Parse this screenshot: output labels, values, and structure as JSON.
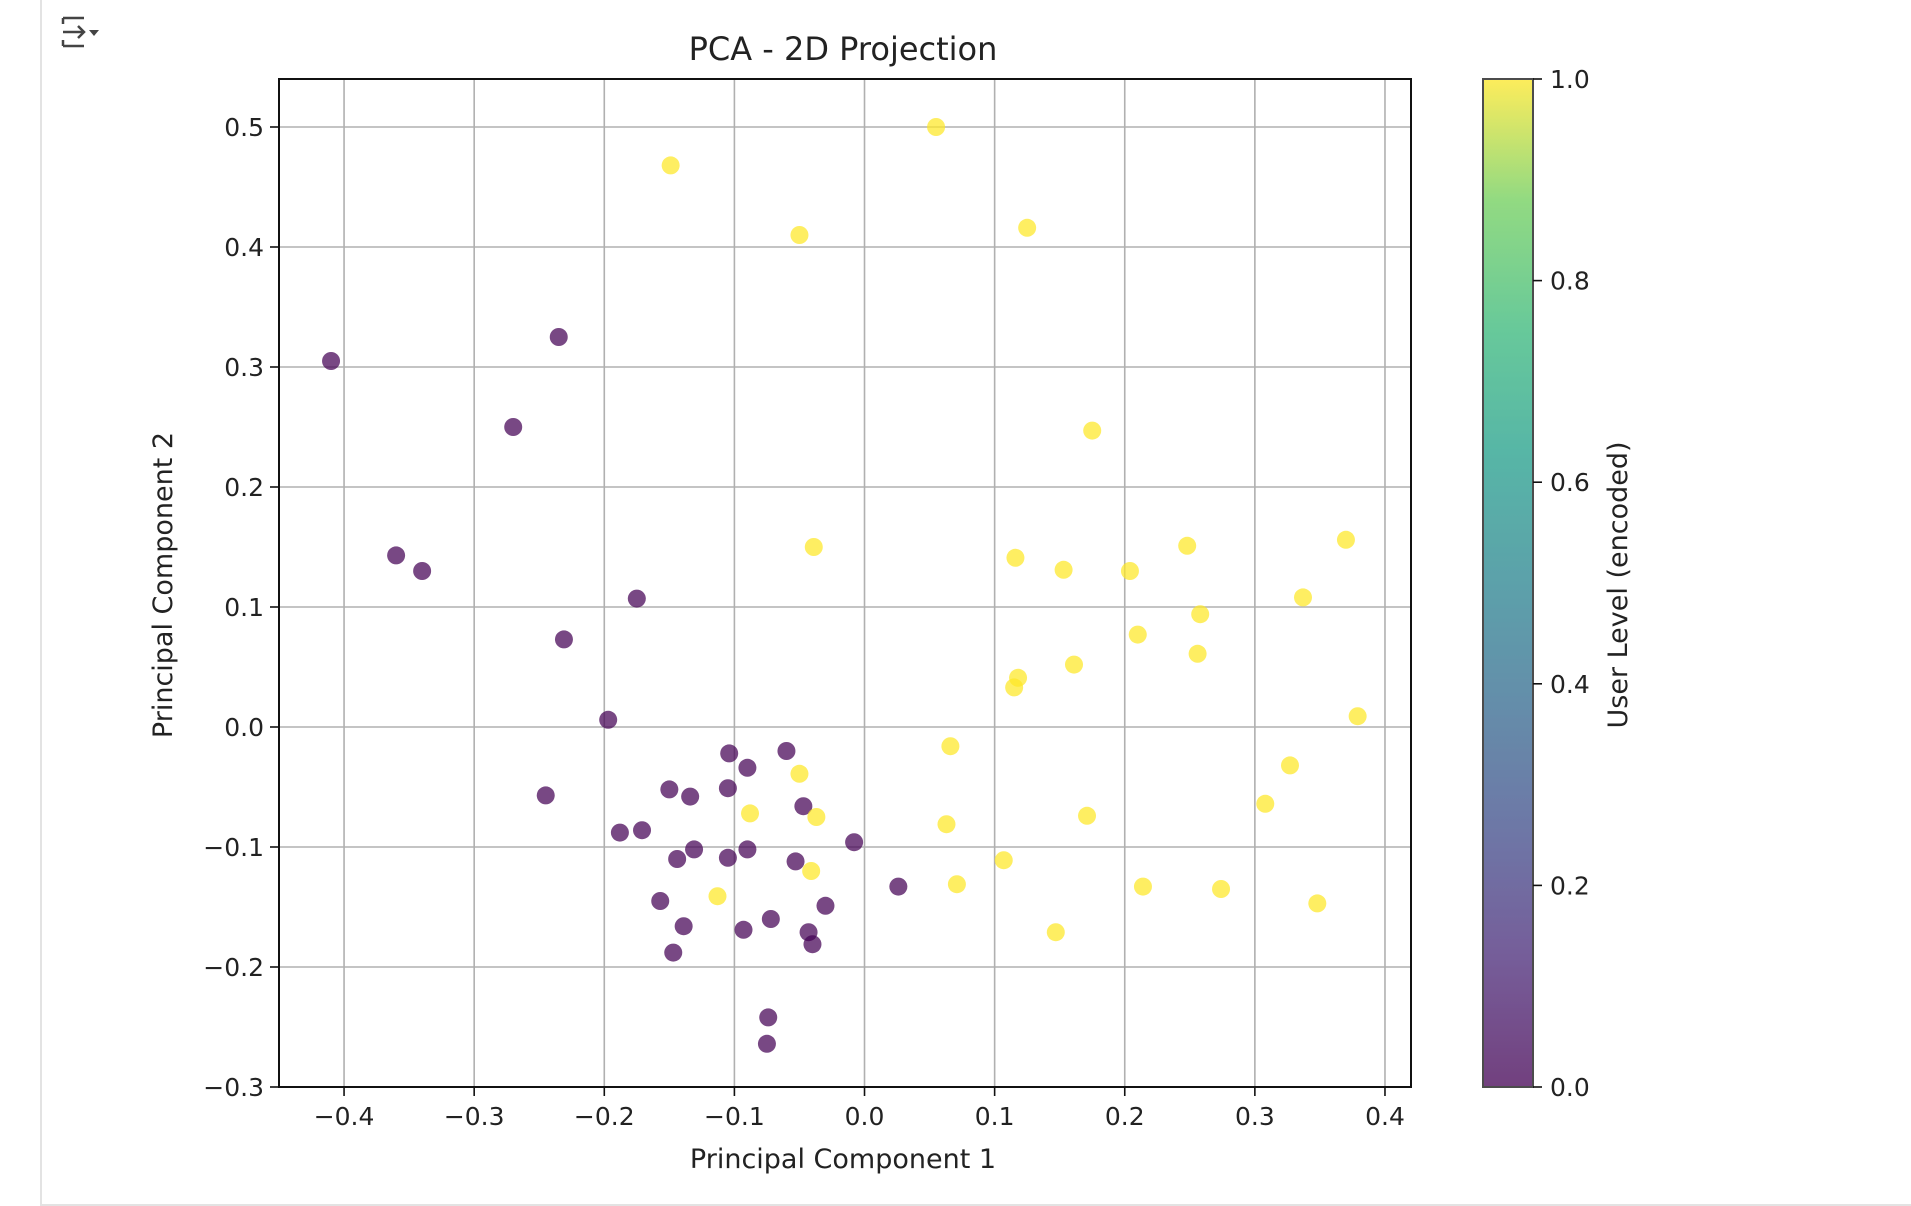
{
  "output_toggle_icon": "output-collapse-icon",
  "chart_data": {
    "type": "scatter",
    "title": "PCA - 2D Projection",
    "xlabel": "Principal Component 1",
    "ylabel": "Principal Component 2",
    "xlim": [
      -0.45,
      0.42
    ],
    "ylim": [
      -0.3,
      0.54
    ],
    "x_ticks": [
      -0.4,
      -0.3,
      -0.2,
      -0.1,
      0.0,
      0.1,
      0.2,
      0.3,
      0.4
    ],
    "x_tick_labels": [
      "−0.4",
      "−0.3",
      "−0.2",
      "−0.1",
      "0.0",
      "0.1",
      "0.2",
      "0.3",
      "0.4"
    ],
    "y_ticks": [
      -0.3,
      -0.2,
      -0.1,
      0.0,
      0.1,
      0.2,
      0.3,
      0.4,
      0.5
    ],
    "y_tick_labels": [
      "−0.3",
      "−0.2",
      "−0.1",
      "0.0",
      "0.1",
      "0.2",
      "0.3",
      "0.4",
      "0.5"
    ],
    "grid": true,
    "colormap": "viridis",
    "colors": {
      "class_0": "#440154",
      "class_1": "#fde725"
    },
    "colorbar": {
      "label": "User Level (encoded)",
      "range": [
        0.0,
        1.0
      ],
      "ticks": [
        0.0,
        0.2,
        0.4,
        0.6,
        0.8,
        1.0
      ],
      "tick_labels": [
        "0.0",
        "0.2",
        "0.4",
        "0.6",
        "0.8",
        "1.0"
      ]
    },
    "points": [
      {
        "x": -0.41,
        "y": 0.305,
        "c": 0
      },
      {
        "x": -0.235,
        "y": 0.325,
        "c": 0
      },
      {
        "x": -0.27,
        "y": 0.25,
        "c": 0
      },
      {
        "x": -0.36,
        "y": 0.143,
        "c": 0
      },
      {
        "x": -0.34,
        "y": 0.13,
        "c": 0
      },
      {
        "x": -0.175,
        "y": 0.107,
        "c": 0
      },
      {
        "x": -0.231,
        "y": 0.073,
        "c": 0
      },
      {
        "x": -0.197,
        "y": 0.006,
        "c": 0
      },
      {
        "x": -0.245,
        "y": -0.057,
        "c": 0
      },
      {
        "x": -0.104,
        "y": -0.022,
        "c": 0
      },
      {
        "x": -0.06,
        "y": -0.02,
        "c": 0
      },
      {
        "x": -0.09,
        "y": -0.034,
        "c": 0
      },
      {
        "x": -0.105,
        "y": -0.051,
        "c": 0
      },
      {
        "x": -0.15,
        "y": -0.052,
        "c": 0
      },
      {
        "x": -0.134,
        "y": -0.058,
        "c": 0
      },
      {
        "x": -0.047,
        "y": -0.066,
        "c": 0
      },
      {
        "x": -0.171,
        "y": -0.086,
        "c": 0
      },
      {
        "x": -0.188,
        "y": -0.088,
        "c": 0
      },
      {
        "x": -0.008,
        "y": -0.096,
        "c": 0
      },
      {
        "x": -0.131,
        "y": -0.102,
        "c": 0
      },
      {
        "x": -0.09,
        "y": -0.102,
        "c": 0
      },
      {
        "x": -0.144,
        "y": -0.11,
        "c": 0
      },
      {
        "x": -0.105,
        "y": -0.109,
        "c": 0
      },
      {
        "x": -0.053,
        "y": -0.112,
        "c": 0
      },
      {
        "x": 0.026,
        "y": -0.133,
        "c": 0
      },
      {
        "x": -0.157,
        "y": -0.145,
        "c": 0
      },
      {
        "x": -0.03,
        "y": -0.149,
        "c": 0
      },
      {
        "x": -0.072,
        "y": -0.16,
        "c": 0
      },
      {
        "x": -0.139,
        "y": -0.166,
        "c": 0
      },
      {
        "x": -0.093,
        "y": -0.169,
        "c": 0
      },
      {
        "x": -0.043,
        "y": -0.171,
        "c": 0
      },
      {
        "x": -0.04,
        "y": -0.181,
        "c": 0
      },
      {
        "x": -0.147,
        "y": -0.188,
        "c": 0
      },
      {
        "x": -0.074,
        "y": -0.242,
        "c": 0
      },
      {
        "x": -0.075,
        "y": -0.264,
        "c": 0
      },
      {
        "x": 0.055,
        "y": 0.5,
        "c": 1
      },
      {
        "x": -0.149,
        "y": 0.468,
        "c": 1
      },
      {
        "x": -0.05,
        "y": 0.41,
        "c": 1
      },
      {
        "x": 0.125,
        "y": 0.416,
        "c": 1
      },
      {
        "x": 0.175,
        "y": 0.247,
        "c": 1
      },
      {
        "x": -0.039,
        "y": 0.15,
        "c": 1
      },
      {
        "x": 0.37,
        "y": 0.156,
        "c": 1
      },
      {
        "x": 0.248,
        "y": 0.151,
        "c": 1
      },
      {
        "x": 0.116,
        "y": 0.141,
        "c": 1
      },
      {
        "x": 0.153,
        "y": 0.131,
        "c": 1
      },
      {
        "x": 0.204,
        "y": 0.13,
        "c": 1
      },
      {
        "x": 0.337,
        "y": 0.108,
        "c": 1
      },
      {
        "x": 0.258,
        "y": 0.094,
        "c": 1
      },
      {
        "x": 0.21,
        "y": 0.077,
        "c": 1
      },
      {
        "x": 0.256,
        "y": 0.061,
        "c": 1
      },
      {
        "x": 0.161,
        "y": 0.052,
        "c": 1
      },
      {
        "x": 0.118,
        "y": 0.041,
        "c": 1
      },
      {
        "x": 0.115,
        "y": 0.033,
        "c": 1
      },
      {
        "x": 0.379,
        "y": 0.009,
        "c": 1
      },
      {
        "x": 0.066,
        "y": -0.016,
        "c": 1
      },
      {
        "x": 0.327,
        "y": -0.032,
        "c": 1
      },
      {
        "x": -0.05,
        "y": -0.039,
        "c": 1
      },
      {
        "x": 0.308,
        "y": -0.064,
        "c": 1
      },
      {
        "x": -0.088,
        "y": -0.072,
        "c": 1
      },
      {
        "x": -0.037,
        "y": -0.075,
        "c": 1
      },
      {
        "x": 0.171,
        "y": -0.074,
        "c": 1
      },
      {
        "x": 0.063,
        "y": -0.081,
        "c": 1
      },
      {
        "x": 0.107,
        "y": -0.111,
        "c": 1
      },
      {
        "x": -0.041,
        "y": -0.12,
        "c": 1
      },
      {
        "x": 0.071,
        "y": -0.131,
        "c": 1
      },
      {
        "x": 0.214,
        "y": -0.133,
        "c": 1
      },
      {
        "x": 0.274,
        "y": -0.135,
        "c": 1
      },
      {
        "x": -0.113,
        "y": -0.141,
        "c": 1
      },
      {
        "x": 0.348,
        "y": -0.147,
        "c": 1
      },
      {
        "x": 0.147,
        "y": -0.171,
        "c": 1
      }
    ]
  }
}
